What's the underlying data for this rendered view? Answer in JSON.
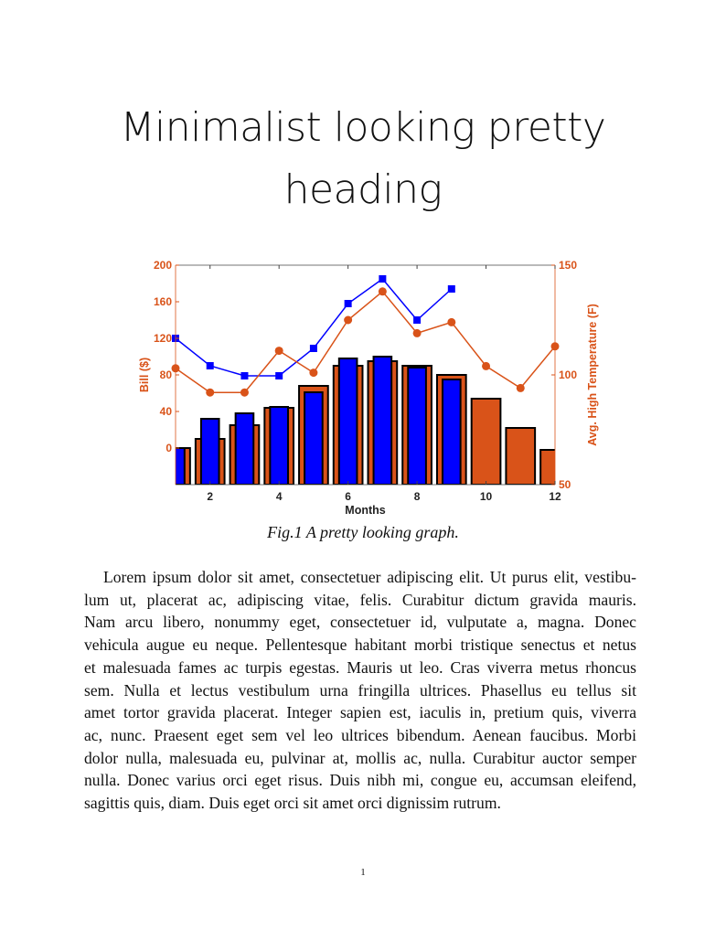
{
  "heading": {
    "lines": [
      "Minimalist looking pretty",
      "heading"
    ]
  },
  "caption": "Fig.1 A pretty looking graph.",
  "paragraph_lines": [
    "Lorem ipsum dolor sit amet, consectetuer adipiscing elit. Ut purus elit, vestibu-",
    "lum ut, placerat ac, adipiscing vitae, felis. Curabitur dictum gravida mauris.",
    "Nam arcu libero, nonummy eget, consectetuer id, vulputate a, magna. Donec",
    "vehicula augue eu neque. Pellentesque habitant morbi tristique senectus et netus",
    "et malesuada fames ac turpis egestas. Mauris ut leo. Cras viverra metus rhoncus",
    "sem. Nulla et lectus vestibulum urna fringilla ultrices. Phasellus eu tellus sit",
    "amet tortor gravida placerat. Integer sapien est, iaculis in, pretium quis, viverra",
    "ac, nunc. Praesent eget sem vel leo ultrices bibendum. Aenean faucibus. Morbi",
    "dolor nulla, malesuada eu, pulvinar at, mollis ac, nulla. Curabitur auctor semper",
    "nulla. Donec varius orci eget risus. Duis nibh mi, congue eu, accumsan eleifend,",
    "sagittis quis, diam. Duis eget orci sit amet orci dignissim rutrum."
  ],
  "page_number": "1",
  "chart_data": {
    "type": "bar+line",
    "xlabel": "Months",
    "ylabel_left": "Bill ($)",
    "ylabel_right": "Avg. High Temperature (F)",
    "xlim": [
      1,
      12
    ],
    "ylim_left": [
      -40,
      200
    ],
    "ylim_right": [
      50,
      150
    ],
    "xticks": [
      2,
      4,
      6,
      8,
      10,
      12
    ],
    "yticks_left": [
      0,
      40,
      80,
      120,
      160,
      200
    ],
    "yticks_right": [
      50,
      100,
      150
    ],
    "x": [
      1,
      2,
      3,
      4,
      5,
      6,
      7,
      8,
      9,
      10,
      11,
      12
    ],
    "colors": {
      "orange": "#D95319",
      "blue": "#0000FF",
      "axis_text": "#D95319"
    },
    "bars": [
      {
        "color": "orange",
        "axis": "left",
        "values": [
          0,
          10,
          25,
          44,
          68,
          90,
          95,
          90,
          80,
          54,
          22,
          -2
        ]
      },
      {
        "color": "blue",
        "axis": "left",
        "values": [
          0,
          32,
          38,
          45,
          61,
          98,
          100,
          88,
          75
        ]
      }
    ],
    "lines": [
      {
        "color": "blue",
        "axis": "left",
        "marker": "square",
        "values": [
          120,
          90,
          79,
          79,
          109,
          158,
          185,
          140,
          174
        ]
      },
      {
        "color": "orange",
        "axis": "right",
        "marker": "circle",
        "values": [
          103,
          92,
          92,
          111,
          101,
          125,
          138,
          119,
          124,
          104,
          94,
          113
        ]
      }
    ]
  }
}
